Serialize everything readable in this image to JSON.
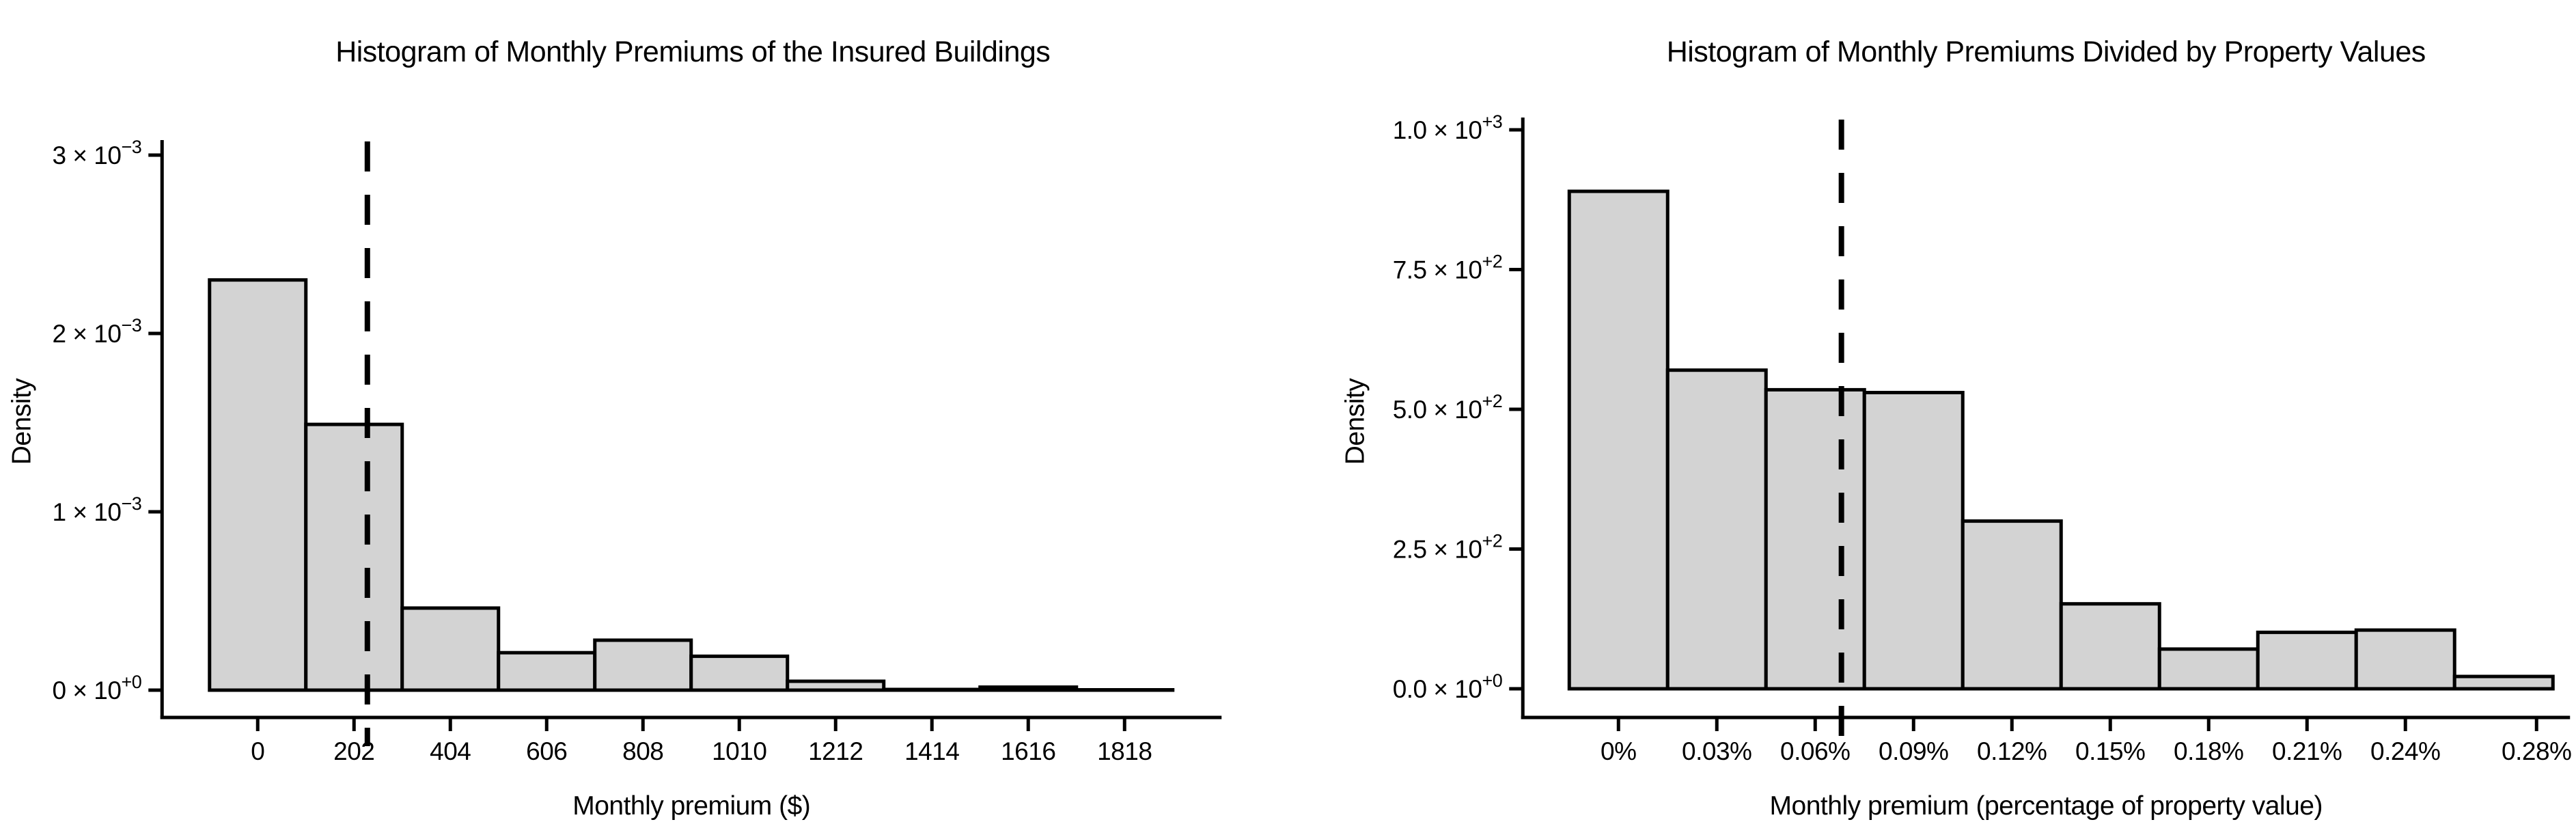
{
  "page": {
    "background": "#ffffff",
    "text_color": "#000000"
  },
  "chart_data": [
    {
      "type": "bar",
      "title": "Histogram of Monthly Premiums of the Insured Buildings",
      "xlabel": "Monthly premium ($)",
      "ylabel": "Density",
      "bar_fill": "#d3d3d3",
      "bar_stroke": "#000000",
      "bin_width": 202,
      "bin_centers": [
        0,
        202,
        404,
        606,
        808,
        1010,
        1212,
        1414,
        1616,
        1818
      ],
      "densities": [
        0.0023,
        0.00149,
        0.00046,
        0.00021,
        0.00028,
        0.00019,
        5e-05,
        4e-06,
        1.7e-05,
        2e-06
      ],
      "x_ticks": [
        {
          "value": 0,
          "label": "0"
        },
        {
          "value": 202,
          "label": "202"
        },
        {
          "value": 404,
          "label": "404"
        },
        {
          "value": 606,
          "label": "606"
        },
        {
          "value": 808,
          "label": "808"
        },
        {
          "value": 1010,
          "label": "1010"
        },
        {
          "value": 1212,
          "label": "1212"
        },
        {
          "value": 1414,
          "label": "1414"
        },
        {
          "value": 1616,
          "label": "1616"
        },
        {
          "value": 1818,
          "label": "1818"
        }
      ],
      "y_ticks": [
        {
          "value": 0,
          "base_text": "0 × 10",
          "sup": "+0"
        },
        {
          "value": 0.001,
          "base_text": "1 × 10",
          "sup": "−3"
        },
        {
          "value": 0.002,
          "base_text": "2 × 10",
          "sup": "−3"
        },
        {
          "value": 0.003,
          "base_text": "3 × 10",
          "sup": "−3"
        }
      ],
      "vline": {
        "value": 230,
        "style": "dashed",
        "color": "#000000"
      },
      "xlim": [
        -200,
        2022
      ],
      "ylim": [
        0,
        0.00322
      ],
      "grid": "off",
      "legend": "none"
    },
    {
      "type": "bar",
      "title": "Histogram of Monthly Premiums Divided by Property Values",
      "xlabel": "Monthly premium (percentage of property value)",
      "ylabel": "Density",
      "bar_fill": "#d3d3d3",
      "bar_stroke": "#000000",
      "bin_width": 0.03,
      "bin_centers": [
        0,
        0.03,
        0.06,
        0.09,
        0.12,
        0.15,
        0.18,
        0.21,
        0.24,
        0.27
      ],
      "densities": [
        890,
        570,
        535,
        530,
        300,
        152,
        71,
        101,
        105,
        22
      ],
      "x_ticks": [
        {
          "value": 0,
          "label": "0%"
        },
        {
          "value": 0.03,
          "label": "0.03%"
        },
        {
          "value": 0.06,
          "label": "0.06%"
        },
        {
          "value": 0.09,
          "label": "0.09%"
        },
        {
          "value": 0.12,
          "label": "0.12%"
        },
        {
          "value": 0.15,
          "label": "0.15%"
        },
        {
          "value": 0.18,
          "label": "0.18%"
        },
        {
          "value": 0.21,
          "label": "0.21%"
        },
        {
          "value": 0.24,
          "label": "0.24%"
        },
        {
          "value": 0.28,
          "label": "0.28%"
        }
      ],
      "y_ticks": [
        {
          "value": 0,
          "base_text": "0.0 × 10",
          "sup": "+0"
        },
        {
          "value": 250,
          "base_text": "2.5 × 10",
          "sup": "+2"
        },
        {
          "value": 500,
          "base_text": "5.0 × 10",
          "sup": "+2"
        },
        {
          "value": 750,
          "base_text": "7.5 × 10",
          "sup": "+2"
        },
        {
          "value": 1000,
          "base_text": "1.0 × 10",
          "sup": "+3"
        }
      ],
      "vline": {
        "value": 0.068,
        "style": "dashed",
        "color": "#000000"
      },
      "xlim": [
        -0.025,
        0.29
      ],
      "ylim": [
        0,
        1025
      ],
      "grid": "off",
      "legend": "none"
    }
  ]
}
